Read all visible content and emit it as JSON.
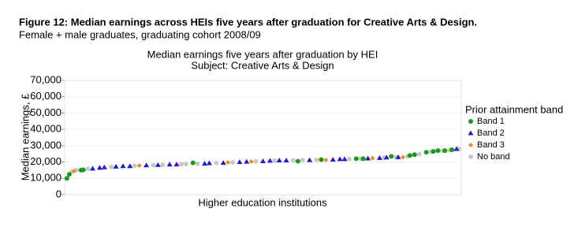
{
  "chart_data": {
    "type": "scatter",
    "figure_title": "Figure 12: Median earnings across HEIs five years after graduation for Creative Arts & Design.",
    "figure_subtitle": "Female + male graduates, graduating cohort 2008/09",
    "title": "Median earnings five years after graduation by HEI",
    "subtitle": "Subject: Creative Arts & Design",
    "x_label": "Higher education institutions",
    "y_label": "Median earnings, £",
    "legend_title": "Prior attainment band",
    "legend_position": "right",
    "grid": true,
    "xlim": [
      0,
      170
    ],
    "ylim": [
      0,
      70000
    ],
    "yticks": [
      0,
      {
        "value": 10000,
        "label": "10,000"
      },
      {
        "value": 20000,
        "label": "20,000"
      },
      {
        "value": 30000,
        "label": "30,000"
      },
      {
        "value": 40000,
        "label": "40,000"
      },
      {
        "value": 50000,
        "label": "50,000"
      },
      {
        "value": 60000,
        "label": "60,000"
      },
      {
        "value": 70000,
        "label": "70,000"
      }
    ],
    "series": [
      {
        "name": "Band 1",
        "color": "#1a9a1a",
        "marker": "circle",
        "x": [
          1,
          2,
          7,
          8,
          55,
          100,
          110,
          125,
          128,
          140,
          148,
          150,
          155,
          158,
          160,
          163,
          166
        ],
        "values": [
          10000,
          12500,
          15000,
          15200,
          19500,
          20500,
          21500,
          22000,
          22000,
          23500,
          24000,
          24500,
          26000,
          26500,
          27000,
          27000,
          27500
        ]
      },
      {
        "name": "Band 2",
        "color": "#1c1ccc",
        "marker": "triangle",
        "x": [
          12,
          15,
          17,
          22,
          25,
          28,
          35,
          40,
          45,
          48,
          60,
          62,
          68,
          75,
          78,
          85,
          88,
          92,
          95,
          105,
          115,
          118,
          120,
          130,
          135,
          138,
          143,
          168
        ],
        "values": [
          16000,
          16500,
          16800,
          17200,
          17500,
          17500,
          18000,
          18200,
          18500,
          18500,
          19000,
          19300,
          19500,
          20000,
          20200,
          20500,
          20800,
          21000,
          21000,
          21200,
          21500,
          21800,
          21800,
          22200,
          22500,
          22800,
          23000,
          28000
        ]
      },
      {
        "name": "Band 3",
        "color": "#f08a1c",
        "marker": "diamond",
        "x": [
          4,
          32,
          70,
          80,
          112,
          132,
          145
        ],
        "values": [
          14500,
          17800,
          19800,
          20300,
          21300,
          22300,
          23000
        ]
      },
      {
        "name": "No band",
        "color": "#c8c8c8",
        "marker": "circle",
        "x": [
          3,
          5,
          10,
          20,
          30,
          38,
          42,
          50,
          52,
          57,
          65,
          72,
          82,
          90,
          98,
          102,
          108,
          122,
          127,
          137,
          142,
          147,
          152,
          157,
          162,
          165,
          169
        ],
        "values": [
          14000,
          15000,
          15800,
          17000,
          17700,
          18100,
          18300,
          18700,
          18800,
          19000,
          19400,
          19800,
          20400,
          20800,
          21000,
          21100,
          21300,
          21900,
          22000,
          22600,
          22900,
          23500,
          24800,
          26300,
          27000,
          27300,
          28000
        ]
      }
    ]
  }
}
